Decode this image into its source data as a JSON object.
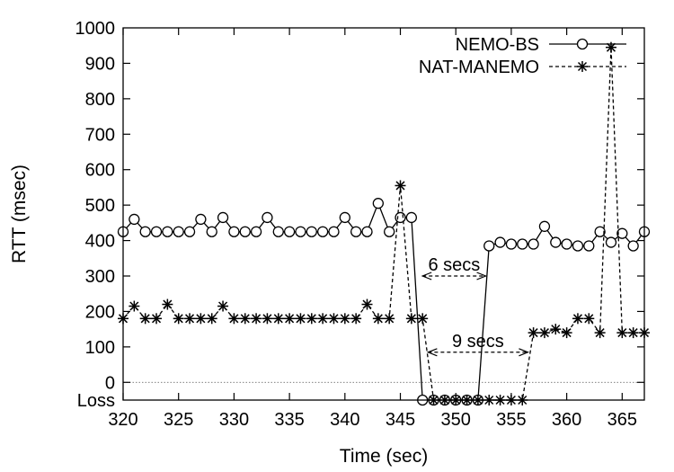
{
  "chart_data": {
    "type": "line",
    "title": "",
    "xlabel": "Time (sec)",
    "ylabel": "RTT (msec)",
    "xlim": [
      320,
      367
    ],
    "ylim": [
      -50,
      1000
    ],
    "x_ticks": [
      320,
      325,
      330,
      335,
      340,
      345,
      350,
      355,
      360,
      365
    ],
    "y_ticks": [
      {
        "value": -50,
        "label": "Loss"
      },
      {
        "value": 0,
        "label": "0"
      },
      {
        "value": 100,
        "label": "100"
      },
      {
        "value": 200,
        "label": "200"
      },
      {
        "value": 300,
        "label": "300"
      },
      {
        "value": 400,
        "label": "400"
      },
      {
        "value": 500,
        "label": "500"
      },
      {
        "value": 600,
        "label": "600"
      },
      {
        "value": 700,
        "label": "700"
      },
      {
        "value": 800,
        "label": "800"
      },
      {
        "value": 900,
        "label": "900"
      },
      {
        "value": 1000,
        "label": "1000"
      }
    ],
    "loss_value": -50,
    "zero_line": true,
    "grid": false,
    "legend_position": "top-right",
    "series": [
      {
        "name": "NEMO-BS",
        "marker": "circle",
        "line": "solid",
        "x": [
          320,
          321,
          322,
          323,
          324,
          325,
          326,
          327,
          328,
          329,
          330,
          331,
          332,
          333,
          334,
          335,
          336,
          337,
          338,
          339,
          340,
          341,
          342,
          343,
          344,
          345,
          346,
          347,
          348,
          349,
          350,
          351,
          352,
          353,
          354,
          355,
          356,
          357,
          358,
          359,
          360,
          361,
          362,
          363,
          364,
          365,
          366,
          367
        ],
        "y": [
          425,
          460,
          425,
          425,
          425,
          425,
          425,
          460,
          425,
          465,
          425,
          425,
          425,
          465,
          425,
          425,
          425,
          425,
          425,
          425,
          465,
          425,
          425,
          505,
          425,
          465,
          465,
          -50,
          -50,
          -50,
          -50,
          -50,
          -50,
          385,
          395,
          390,
          390,
          390,
          440,
          395,
          390,
          385,
          385,
          425,
          395,
          420,
          385,
          425
        ]
      },
      {
        "name": "NAT-MANEMO",
        "marker": "asterisk",
        "line": "dashed",
        "x": [
          320,
          321,
          322,
          323,
          324,
          325,
          326,
          327,
          328,
          329,
          330,
          331,
          332,
          333,
          334,
          335,
          336,
          337,
          338,
          339,
          340,
          341,
          342,
          343,
          344,
          345,
          346,
          347,
          348,
          349,
          350,
          351,
          352,
          353,
          354,
          355,
          356,
          357,
          358,
          359,
          360,
          361,
          362,
          363,
          364,
          365,
          366,
          367
        ],
        "y": [
          180,
          215,
          180,
          180,
          220,
          180,
          180,
          180,
          180,
          215,
          180,
          180,
          180,
          180,
          180,
          180,
          180,
          180,
          180,
          180,
          180,
          180,
          220,
          180,
          180,
          555,
          180,
          180,
          -50,
          -50,
          -50,
          -50,
          -50,
          -50,
          -50,
          -50,
          -50,
          140,
          140,
          150,
          140,
          180,
          180,
          140,
          945,
          140,
          140,
          140
        ]
      }
    ],
    "annotations": [
      {
        "text": "6 secs",
        "x_start": 347,
        "x_end": 352.7,
        "y": 300
      },
      {
        "text": "9 secs",
        "x_start": 347.5,
        "x_end": 356.5,
        "y": 85
      }
    ]
  }
}
